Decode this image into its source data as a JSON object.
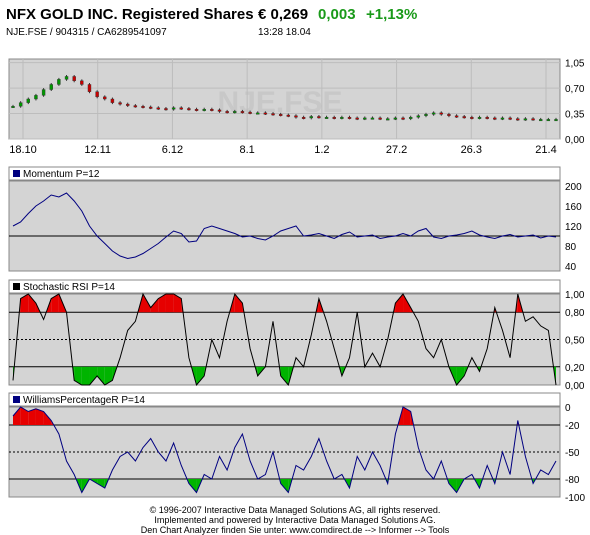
{
  "header": {
    "title": "NFX GOLD INC. Registered Shares",
    "price": "€ 0,269",
    "change": "0,003",
    "change_pct": "+1,13%",
    "subline": "NJE.FSE  /  904315  /  CA6289541097",
    "time": "13:28   18.04",
    "positive_color": "#1a9a1a"
  },
  "watermark": "NJE.FSE",
  "footer": [
    "© 1996-2007 Interactive Data Managed Solutions AG, all rights reserved.",
    "Implemented and powered by Interactive Data Managed Solutions AG.",
    "Den Chart Analyzer finden Sie unter: www.comdirect.de --> Informer --> Tools"
  ],
  "colors": {
    "panel_bg": "#d4d4d4",
    "line_blue": "#000080",
    "line_black": "#000000",
    "fill_red": "#e60000",
    "fill_green": "#00b400",
    "candle_up": "#009600",
    "candle_down": "#c80000"
  },
  "chart_data": [
    {
      "type": "candlestick",
      "name": "price",
      "x_tick_labels": [
        "18.10",
        "12.11",
        "6.12",
        "8.1",
        "1.2",
        "27.2",
        "26.3",
        "21.4"
      ],
      "y_ticks": [
        "1,05",
        "0,70",
        "0,35",
        "0,00"
      ],
      "ylim": [
        0,
        1.1
      ],
      "close": [
        0.45,
        0.5,
        0.55,
        0.6,
        0.68,
        0.75,
        0.82,
        0.86,
        0.8,
        0.75,
        0.65,
        0.58,
        0.55,
        0.5,
        0.48,
        0.46,
        0.45,
        0.44,
        0.43,
        0.42,
        0.41,
        0.43,
        0.42,
        0.41,
        0.4,
        0.41,
        0.4,
        0.38,
        0.37,
        0.38,
        0.37,
        0.36,
        0.36,
        0.35,
        0.34,
        0.33,
        0.32,
        0.3,
        0.29,
        0.31,
        0.3,
        0.3,
        0.29,
        0.3,
        0.29,
        0.28,
        0.29,
        0.29,
        0.28,
        0.28,
        0.29,
        0.28,
        0.3,
        0.32,
        0.34,
        0.36,
        0.34,
        0.32,
        0.31,
        0.3,
        0.29,
        0.3,
        0.29,
        0.28,
        0.29,
        0.28,
        0.27,
        0.28,
        0.27,
        0.27,
        0.27,
        0.27
      ]
    },
    {
      "type": "line",
      "name": "Momentum P=12",
      "label": "Momentum P=12",
      "y_ticks": [
        "200",
        "160",
        "120",
        "80",
        "40"
      ],
      "ylim": [
        30,
        210
      ],
      "reference": 100,
      "values": [
        120,
        128,
        145,
        160,
        170,
        182,
        178,
        186,
        170,
        150,
        120,
        100,
        85,
        70,
        60,
        55,
        58,
        65,
        75,
        85,
        98,
        110,
        105,
        88,
        90,
        115,
        120,
        115,
        110,
        105,
        98,
        100,
        95,
        92,
        100,
        110,
        115,
        120,
        100,
        102,
        105,
        100,
        95,
        103,
        108,
        98,
        100,
        102,
        95,
        98,
        100,
        105,
        100,
        110,
        115,
        98,
        95,
        100,
        102,
        105,
        110,
        102,
        98,
        95,
        100,
        103,
        98,
        100,
        102,
        96,
        100,
        98
      ]
    },
    {
      "type": "line",
      "name": "Stochastic RSI P=14",
      "label": "Stochastic RSI P=14",
      "y_ticks": [
        "1,00",
        "0,80",
        "0,50",
        "0,20",
        "0,00"
      ],
      "ylim": [
        0,
        1
      ],
      "bands": [
        0.8,
        0.5,
        0.2
      ],
      "values": [
        0.05,
        0.95,
        1.0,
        0.9,
        0.72,
        0.95,
        1.0,
        0.8,
        0.05,
        0.0,
        0.0,
        0.1,
        0.0,
        0.05,
        0.3,
        0.6,
        0.7,
        1.0,
        0.85,
        0.95,
        1.0,
        1.0,
        0.95,
        0.3,
        0.0,
        0.1,
        0.5,
        0.3,
        0.7,
        1.0,
        0.9,
        0.4,
        0.1,
        0.2,
        0.7,
        0.1,
        0.0,
        0.3,
        0.2,
        0.55,
        0.95,
        0.7,
        0.4,
        0.1,
        0.3,
        0.8,
        0.2,
        0.35,
        0.2,
        0.5,
        0.9,
        1.0,
        0.85,
        0.7,
        0.4,
        0.3,
        0.5,
        0.2,
        0.0,
        0.1,
        0.3,
        0.15,
        0.4,
        0.85,
        0.6,
        0.3,
        1.0,
        0.7,
        0.75,
        0.65,
        0.6,
        0.0
      ]
    },
    {
      "type": "line",
      "name": "WilliamsPercentageR P=14",
      "label": "WilliamsPercentageR P=14",
      "y_ticks": [
        "0",
        "-20",
        "-50",
        "-80",
        "-100"
      ],
      "ylim": [
        -100,
        0
      ],
      "bands": [
        -20,
        -50,
        -80
      ],
      "values": [
        -10,
        0,
        -5,
        -2,
        -5,
        -15,
        -30,
        -60,
        -75,
        -95,
        -80,
        -85,
        -90,
        -70,
        -55,
        -50,
        -60,
        -45,
        -35,
        -50,
        -60,
        -40,
        -65,
        -85,
        -95,
        -75,
        -80,
        -55,
        -70,
        -45,
        -30,
        -60,
        -80,
        -75,
        -50,
        -85,
        -95,
        -65,
        -70,
        -55,
        -35,
        -60,
        -80,
        -75,
        -90,
        -55,
        -70,
        -50,
        -65,
        -85,
        -30,
        0,
        -5,
        -45,
        -70,
        -80,
        -60,
        -85,
        -95,
        -80,
        -75,
        -90,
        -65,
        -85,
        -50,
        -75,
        -15,
        -55,
        -85,
        -70,
        -75,
        -60
      ]
    }
  ]
}
